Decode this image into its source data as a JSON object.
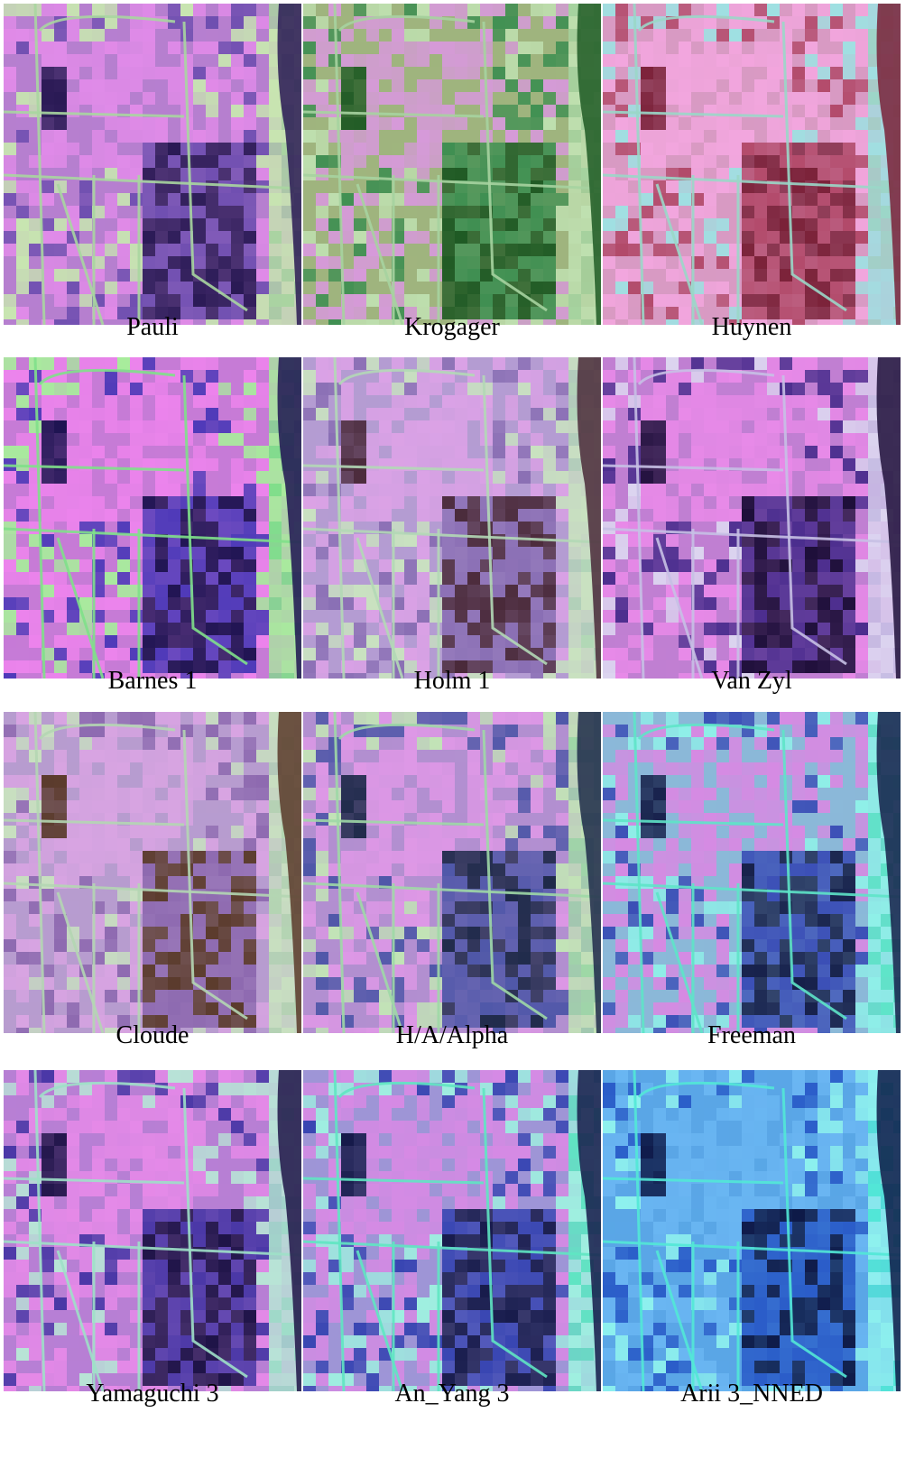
{
  "panels": [
    {
      "caption": "Pauli",
      "palette": {
        "base": "#b67fcf",
        "field": "#e08be8",
        "dark": "#2a1a55",
        "mid": "#6f4fb0",
        "accent": "#c8e7b0",
        "edge": "#a9d6a0"
      }
    },
    {
      "caption": "Krogager",
      "palette": {
        "base": "#9fb47e",
        "field": "#d69ad9",
        "dark": "#1f5a24",
        "mid": "#3f8f52",
        "accent": "#bfe0b0",
        "edge": "#a6d3a0"
      }
    },
    {
      "caption": "Huynen",
      "palette": {
        "base": "#d89ac3",
        "field": "#f2a6de",
        "dark": "#7a2138",
        "mid": "#b24a6a",
        "accent": "#9fe0e2",
        "edge": "#9ad7c8"
      }
    },
    {
      "caption": "Barnes 1",
      "palette": {
        "base": "#c67bd6",
        "field": "#ec84ec",
        "dark": "#1f1452",
        "mid": "#4e3ab8",
        "accent": "#a8ec9c",
        "edge": "#7fe08a"
      }
    },
    {
      "caption": "Holm 1",
      "palette": {
        "base": "#b49cd2",
        "field": "#dba2e6",
        "dark": "#4a2a3a",
        "mid": "#8a6fb4",
        "accent": "#c9e2c0",
        "edge": "#b2d8b6"
      }
    },
    {
      "caption": "Van Zyl",
      "palette": {
        "base": "#c07fd2",
        "field": "#e88ae8",
        "dark": "#1e0f3a",
        "mid": "#4b2e8e",
        "accent": "#dcd6f0",
        "edge": "#c7c0e4"
      }
    },
    {
      "caption": "Cloude",
      "palette": {
        "base": "#b79ccf",
        "field": "#d8a4e2",
        "dark": "#5a3a2a",
        "mid": "#8e6ab0",
        "accent": "#c8e0c0",
        "edge": "#b4d6b2"
      }
    },
    {
      "caption": "H/A/Alpha",
      "palette": {
        "base": "#b28fd0",
        "field": "#de98e6",
        "dark": "#1f2a4a",
        "mid": "#4f57a8",
        "accent": "#c2e4b6",
        "edge": "#9ed8a6"
      }
    },
    {
      "caption": "Freeman",
      "palette": {
        "base": "#8bb8d8",
        "field": "#d68ae2",
        "dark": "#16204a",
        "mid": "#3b4fb6",
        "accent": "#8ff0e8",
        "edge": "#5ee4c8"
      }
    },
    {
      "caption": "Yamaguchi 3",
      "palette": {
        "base": "#b77fd4",
        "field": "#e58ae8",
        "dark": "#1f1448",
        "mid": "#4a38a6",
        "accent": "#b8e6d6",
        "edge": "#9ee0c8"
      }
    },
    {
      "caption": "An_Yang 3",
      "palette": {
        "base": "#9e95d6",
        "field": "#d68ae4",
        "dark": "#161a4a",
        "mid": "#3946b2",
        "accent": "#9ff0e0",
        "edge": "#5fe6c2"
      }
    },
    {
      "caption": "Arii 3_NNED",
      "palette": {
        "base": "#5aa6e6",
        "field": "#6ab6f2",
        "dark": "#0e1a48",
        "mid": "#2a5cc8",
        "accent": "#8ff2ee",
        "edge": "#52e8d6"
      }
    }
  ]
}
